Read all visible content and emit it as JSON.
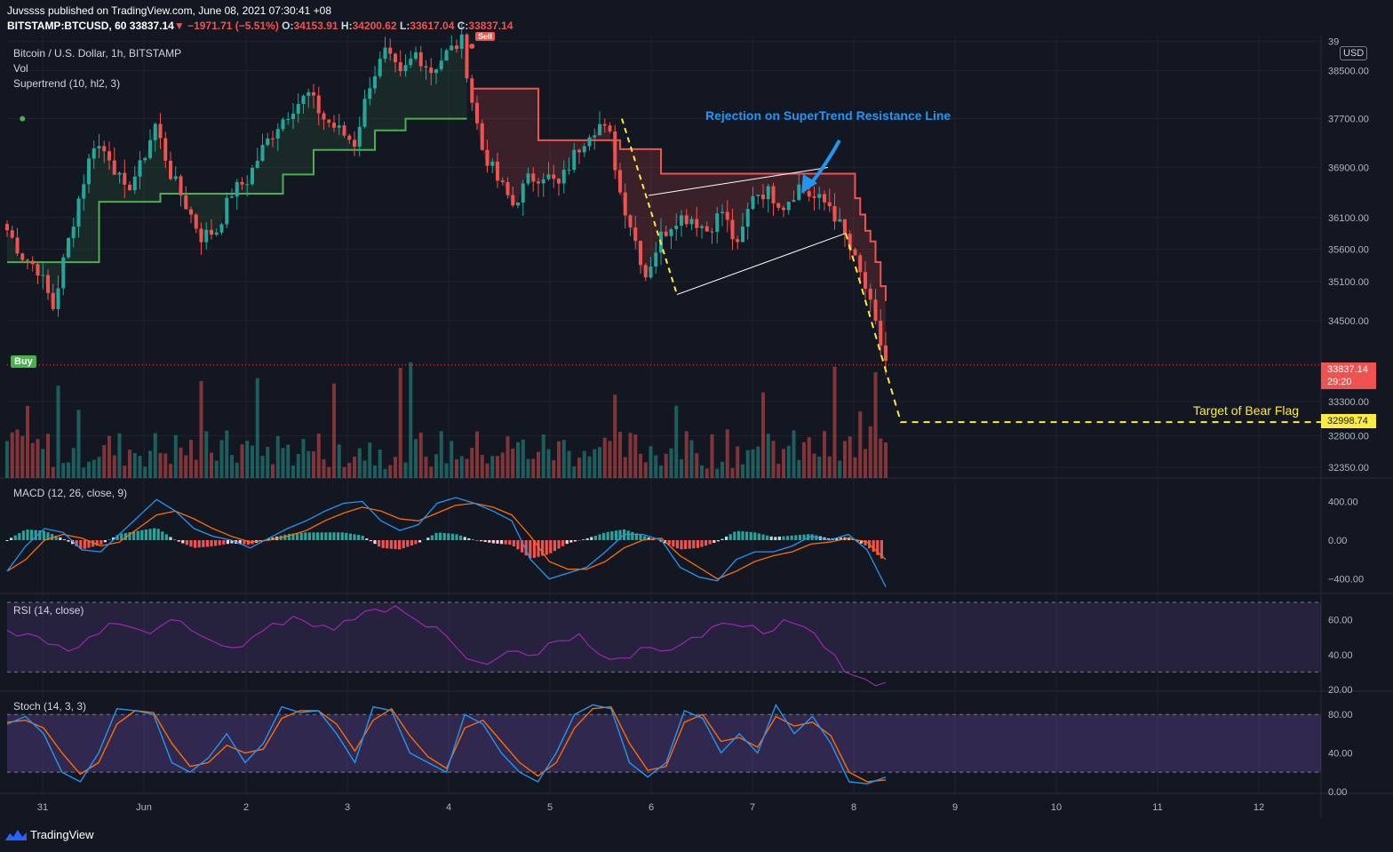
{
  "header": {
    "publisher_line": "Juvssss published on TradingView.com, June 08, 2021 07:30:41 +08",
    "symbol": "BITSTAMP:BTCUSD, 60",
    "last": "33837.14",
    "change": "▼ −1971.71 (−5.51%)",
    "o_label": "O:",
    "o": "34153.91",
    "h_label": "H:",
    "h": "34200.62",
    "l_label": "L:",
    "l": "33617.04",
    "c_label": "C:",
    "c": "33837.14"
  },
  "legend": {
    "main": "Bitcoin / U.S. Dollar, 1h, BITSTAMP",
    "vol": "Vol",
    "supertrend": "Supertrend (10, hl2, 3)",
    "macd": "MACD (12, 26, close, 9)",
    "rsi": "RSI (14, close)",
    "stoch": "Stoch (14, 3, 3)"
  },
  "currency": "USD",
  "annotations": {
    "rejection": "Rejection on SuperTrend Resistance Line",
    "target": "Target of Bear Flag",
    "buy": "Buy",
    "sell": "Sell"
  },
  "price_tags": {
    "last_price": "33837.14",
    "countdown": "29:20",
    "target_price": "32998.74"
  },
  "branding": {
    "name": "TradingView"
  },
  "colors": {
    "background": "#131722",
    "up": "#26a69a",
    "down": "#ef5350",
    "supertrend_up": "#4caf50",
    "supertrend_down": "#ef5350",
    "annotation_blue": "#2196f3",
    "target_yellow": "#ffeb3b",
    "macd_line": "#2196f3",
    "signal_line": "#ff6d00",
    "rsi_line": "#9c27b0",
    "stoch_k": "#2196f3",
    "stoch_d": "#ff6d00"
  },
  "chart_data": [
    {
      "type": "candlestick",
      "title": "Bitcoin / U.S. Dollar, 1h, BITSTAMP",
      "y_ticks": [
        "39",
        "38500.00",
        "37700.00",
        "36900.00",
        "36100.00",
        "35600.00",
        "35100.00",
        "34500.00",
        "33300.00",
        "32800.00",
        "32350.00"
      ],
      "x_ticks": [
        "31",
        "Jun",
        "2",
        "3",
        "4",
        "5",
        "6",
        "7",
        "8",
        "9",
        "10",
        "11",
        "12"
      ],
      "ylim": [
        32200,
        39100
      ],
      "log_scale": true,
      "path": [
        [
          0,
          35900
        ],
        [
          3,
          35500
        ],
        [
          6,
          35300
        ],
        [
          9,
          34700
        ],
        [
          11,
          35400
        ],
        [
          14,
          36400
        ],
        [
          17,
          37300
        ],
        [
          20,
          37100
        ],
        [
          23,
          36500
        ],
        [
          26,
          36900
        ],
        [
          29,
          37600
        ],
        [
          32,
          36800
        ],
        [
          35,
          36300
        ],
        [
          38,
          35800
        ],
        [
          41,
          35900
        ],
        [
          44,
          36500
        ],
        [
          47,
          36700
        ],
        [
          50,
          37200
        ],
        [
          53,
          37600
        ],
        [
          56,
          37900
        ],
        [
          59,
          38100
        ],
        [
          62,
          37700
        ],
        [
          65,
          37500
        ],
        [
          68,
          37300
        ],
        [
          71,
          38300
        ],
        [
          74,
          38800
        ],
        [
          77,
          38400
        ],
        [
          80,
          38800
        ],
        [
          83,
          38500
        ],
        [
          86,
          38800
        ],
        [
          89,
          39000
        ],
        [
          91,
          38000
        ],
        [
          93,
          37200
        ],
        [
          96,
          36700
        ],
        [
          99,
          36300
        ],
        [
          102,
          36700
        ],
        [
          105,
          36800
        ],
        [
          108,
          36600
        ],
        [
          111,
          37100
        ],
        [
          114,
          37500
        ],
        [
          116,
          37600
        ],
        [
          118,
          37400
        ],
        [
          120,
          36500
        ],
        [
          122,
          36000
        ],
        [
          125,
          35200
        ],
        [
          128,
          35800
        ],
        [
          131,
          36100
        ],
        [
          134,
          36100
        ],
        [
          137,
          35900
        ],
        [
          140,
          36200
        ],
        [
          143,
          35600
        ],
        [
          146,
          36500
        ],
        [
          149,
          36500
        ],
        [
          152,
          36300
        ],
        [
          155,
          36600
        ],
        [
          158,
          36400
        ],
        [
          161,
          36300
        ],
        [
          164,
          35800
        ],
        [
          166,
          35400
        ],
        [
          168,
          35000
        ],
        [
          170,
          34400
        ],
        [
          172,
          33900
        ]
      ],
      "buy_signal_at": 3,
      "sell_signal_at": 91,
      "last_price": 33837.14,
      "target": 32998.74
    },
    {
      "type": "bar",
      "title": "Vol",
      "note": "hourly volume histogram; colored by candle direction"
    },
    {
      "type": "line",
      "title": "MACD (12, 26, close, 9)",
      "y_ticks": [
        "400.00",
        "0.00",
        "−400.00"
      ],
      "ylim": [
        -550,
        550
      ],
      "series": [
        {
          "name": "MACD",
          "values": [
            -320,
            -60,
            120,
            80,
            -100,
            -120,
            60,
            240,
            420,
            300,
            120,
            40,
            0,
            -80,
            20,
            120,
            200,
            300,
            380,
            400,
            200,
            100,
            160,
            380,
            440,
            380,
            300,
            200,
            -200,
            -400,
            -340,
            -280,
            -120,
            60,
            60,
            0,
            -280,
            -380,
            -420,
            -200,
            -120,
            -120,
            -60,
            40,
            0,
            60,
            -100,
            -480
          ]
        },
        {
          "name": "Signal",
          "values": [
            -320,
            -200,
            0,
            60,
            20,
            -60,
            -20,
            120,
            260,
            300,
            220,
            120,
            40,
            -20,
            0,
            40,
            100,
            200,
            280,
            340,
            300,
            220,
            200,
            280,
            360,
            380,
            340,
            260,
            40,
            -220,
            -300,
            -300,
            -220,
            -80,
            0,
            20,
            -160,
            -280,
            -400,
            -320,
            -220,
            -160,
            -120,
            -40,
            -20,
            20,
            -20,
            -200
          ]
        }
      ]
    },
    {
      "type": "line",
      "title": "RSI (14, close)",
      "y_ticks": [
        "60.00",
        "40.00",
        "20.00"
      ],
      "ylim": [
        19,
        70
      ],
      "bands": [
        30,
        70
      ],
      "values": [
        54,
        52,
        46,
        42,
        50,
        58,
        56,
        52,
        60,
        54,
        48,
        44,
        50,
        58,
        62,
        56,
        54,
        60,
        66,
        68,
        60,
        56,
        44,
        36,
        38,
        42,
        40,
        48,
        52,
        40,
        38,
        44,
        42,
        46,
        50,
        58,
        56,
        52,
        60,
        56,
        44,
        30,
        26,
        24
      ]
    },
    {
      "type": "line",
      "title": "Stoch (14, 3, 3)",
      "y_ticks": [
        "80.00",
        "40.00",
        "0.00"
      ],
      "ylim": [
        -2,
        95
      ],
      "bands": [
        20,
        80
      ],
      "series": [
        {
          "name": "%K",
          "values": [
            70,
            78,
            60,
            20,
            10,
            40,
            86,
            84,
            80,
            30,
            20,
            35,
            60,
            30,
            50,
            88,
            82,
            84,
            60,
            30,
            88,
            84,
            40,
            30,
            20,
            80,
            70,
            40,
            20,
            10,
            40,
            80,
            90,
            86,
            30,
            15,
            30,
            84,
            76,
            40,
            60,
            40,
            90,
            60,
            78,
            50,
            10,
            8,
            15
          ]
        },
        {
          "name": "%D",
          "values": [
            72,
            74,
            66,
            40,
            18,
            30,
            70,
            84,
            82,
            50,
            26,
            30,
            48,
            40,
            44,
            76,
            84,
            84,
            70,
            42,
            74,
            86,
            58,
            36,
            24,
            66,
            74,
            52,
            30,
            16,
            30,
            66,
            86,
            88,
            50,
            22,
            26,
            72,
            80,
            52,
            56,
            46,
            78,
            68,
            72,
            58,
            20,
            10,
            12
          ]
        }
      ]
    }
  ]
}
